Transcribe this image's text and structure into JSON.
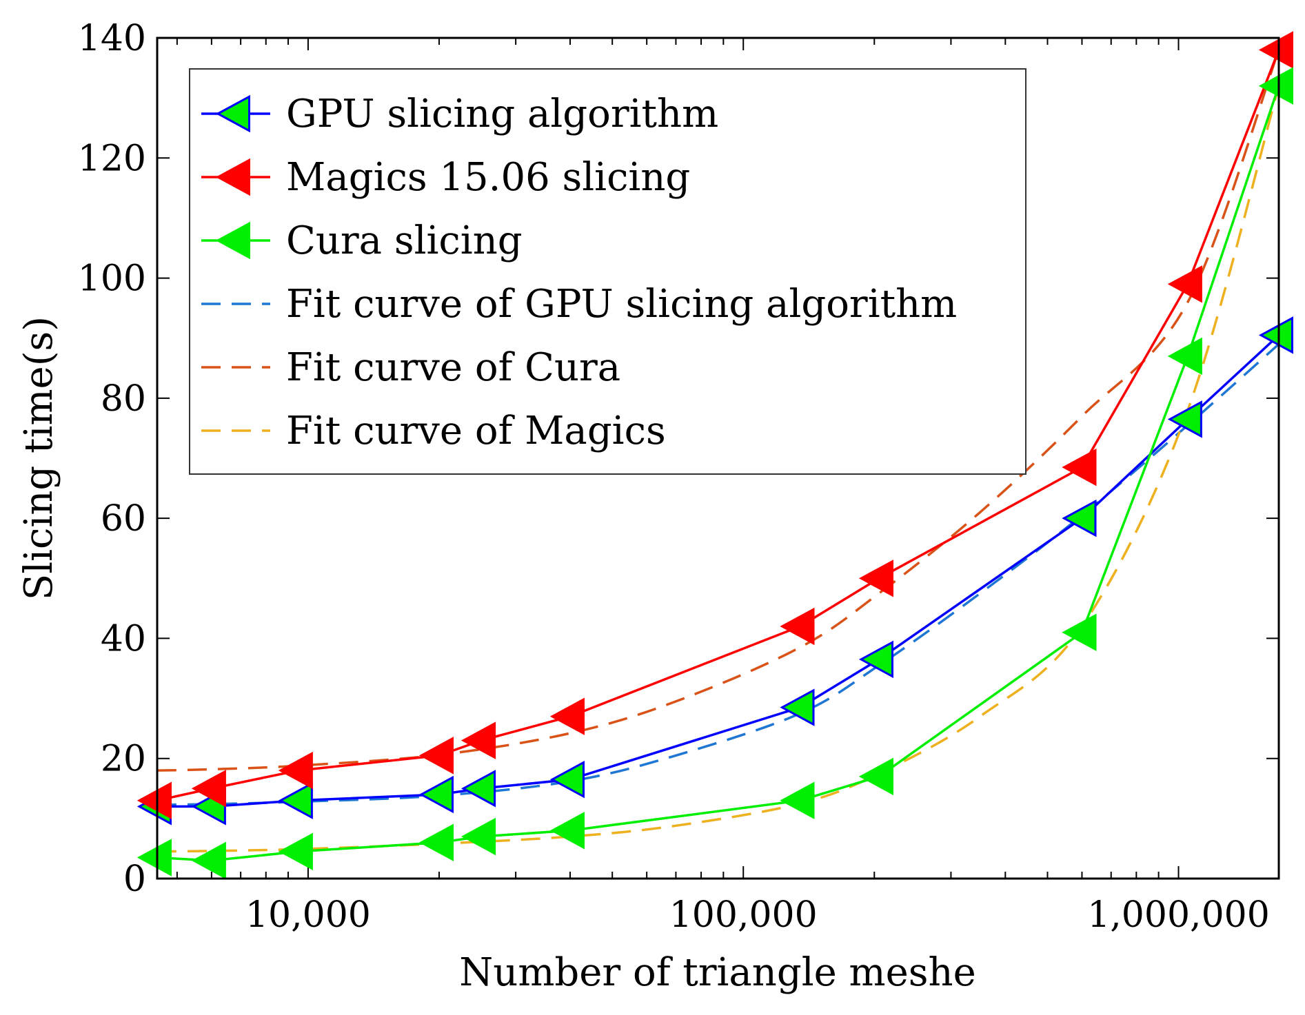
{
  "chart_data": {
    "type": "line",
    "title": "",
    "xlabel": "Number of triangle meshe",
    "ylabel": "Slicing time(s)",
    "xscale": "log",
    "xlim": [
      4500,
      1700000
    ],
    "ylim": [
      0,
      140
    ],
    "x_ticks": [
      10000,
      100000,
      1000000
    ],
    "x_tick_labels": [
      "10,000",
      "100,000",
      "1,000,000"
    ],
    "y_ticks": [
      0,
      20,
      40,
      60,
      80,
      100,
      120,
      140
    ],
    "y_tick_labels": [
      "0",
      "20",
      "40",
      "60",
      "80",
      "100",
      "120",
      "140"
    ],
    "legend_position": "top-left",
    "series": [
      {
        "name": "GPU slicing algorithm",
        "style": "solid",
        "marker": "triangle-left",
        "color": "#0000ff",
        "marker_fill": "#00ee00",
        "marker_edge": "#0000ff",
        "x": [
          4500,
          6000,
          9500,
          20000,
          25000,
          40000,
          135000,
          205000,
          600000,
          1050000,
          1700000
        ],
        "y": [
          12,
          12,
          13,
          14,
          15,
          16.5,
          28.5,
          36.5,
          60,
          76.5,
          90.5
        ]
      },
      {
        "name": "Magics 15.06 slicing",
        "style": "solid",
        "marker": "triangle-left",
        "color": "#ff0000",
        "marker_fill": "#ff0000",
        "marker_edge": "#ff0000",
        "x": [
          4500,
          6000,
          9500,
          20000,
          25000,
          40000,
          135000,
          205000,
          600000,
          1050000,
          1700000
        ],
        "y": [
          13,
          15,
          18,
          20.5,
          23,
          27,
          42,
          50,
          68.5,
          99,
          138
        ]
      },
      {
        "name": "Cura slicing",
        "style": "solid",
        "marker": "triangle-left",
        "color": "#00ee00",
        "marker_fill": "#00ee00",
        "marker_edge": "#00ee00",
        "x": [
          4500,
          6000,
          9500,
          20000,
          25000,
          40000,
          135000,
          205000,
          600000,
          1050000,
          1700000
        ],
        "y": [
          3.5,
          3,
          4.5,
          6,
          7,
          8,
          13,
          17,
          41,
          87,
          132
        ]
      },
      {
        "name": "Fit curve of GPU slicing algorithm",
        "style": "dashed",
        "color": "#1f77d4",
        "x": [
          4500,
          6000,
          9500,
          20000,
          40000,
          70000,
          135000,
          205000,
          350000,
          600000,
          1050000,
          1700000
        ],
        "y": [
          12.3,
          12.4,
          12.8,
          13.8,
          16.2,
          20.5,
          27.5,
          35.5,
          47.5,
          60.5,
          75.5,
          89
        ]
      },
      {
        "name": "Fit curve of Cura",
        "style": "dashed",
        "color": "#d95319",
        "x": [
          4500,
          6000,
          9500,
          20000,
          40000,
          70000,
          135000,
          205000,
          350000,
          600000,
          1050000,
          1700000
        ],
        "y": [
          18,
          18.2,
          18.8,
          20.6,
          24.2,
          29.5,
          38.5,
          47.5,
          61,
          77,
          96,
          138
        ]
      },
      {
        "name": "Fit curve of Magics",
        "style": "dashed",
        "color": "#edb120",
        "x": [
          4500,
          6000,
          9500,
          20000,
          40000,
          70000,
          135000,
          205000,
          350000,
          600000,
          1050000,
          1700000
        ],
        "y": [
          4.5,
          4.6,
          4.9,
          5.8,
          7,
          8.8,
          12.5,
          17.5,
          27,
          42,
          78,
          132
        ]
      }
    ]
  }
}
